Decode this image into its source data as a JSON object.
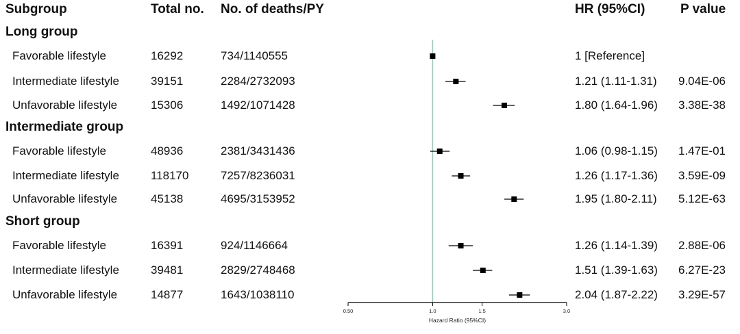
{
  "header": {
    "subgroup": "Subgroup",
    "total": "Total no.",
    "deaths": "No. of deaths/PY",
    "hr": "HR (95%CI)",
    "p": "P value"
  },
  "chart_data": {
    "type": "forest",
    "xlabel": "Hazard Ratio (95%CI)",
    "xscale": "log",
    "xlim": [
      0.5,
      3.0
    ],
    "xticks": [
      {
        "value": 0.5,
        "label": "0.50"
      },
      {
        "value": 1.0,
        "label": "1.0"
      },
      {
        "value": 1.5,
        "label": "1.5"
      },
      {
        "value": 3.0,
        "label": "3.0"
      }
    ],
    "reference_line": 1.0,
    "groups": [
      {
        "name": "Long group",
        "rows": [
          {
            "subgroup": "Favorable lifestyle",
            "total": "16292",
            "deaths_py": "734/1140555",
            "hr_text": "1 [Reference]",
            "p": "",
            "hr": 1.0,
            "lo": 1.0,
            "hi": 1.0
          },
          {
            "subgroup": "Intermediate lifestyle",
            "total": "39151",
            "deaths_py": "2284/2732093",
            "hr_text": "1.21 (1.11-1.31)",
            "p": "9.04E-06",
            "hr": 1.21,
            "lo": 1.11,
            "hi": 1.31
          },
          {
            "subgroup": "Unfavorable lifestyle",
            "total": "15306",
            "deaths_py": "1492/1071428",
            "hr_text": "1.80 (1.64-1.96)",
            "p": "3.38E-38",
            "hr": 1.8,
            "lo": 1.64,
            "hi": 1.96
          }
        ]
      },
      {
        "name": "Intermediate group",
        "rows": [
          {
            "subgroup": "Favorable lifestyle",
            "total": "48936",
            "deaths_py": "2381/3431436",
            "hr_text": "1.06 (0.98-1.15)",
            "p": "1.47E-01",
            "hr": 1.06,
            "lo": 0.98,
            "hi": 1.15
          },
          {
            "subgroup": "Intermediate lifestyle",
            "total": "118170",
            "deaths_py": "7257/8236031",
            "hr_text": "1.26 (1.17-1.36)",
            "p": "3.59E-09",
            "hr": 1.26,
            "lo": 1.17,
            "hi": 1.36
          },
          {
            "subgroup": "Unfavorable lifestyle",
            "total": "45138",
            "deaths_py": "4695/3153952",
            "hr_text": "1.95 (1.80-2.11)",
            "p": "5.12E-63",
            "hr": 1.95,
            "lo": 1.8,
            "hi": 2.11
          }
        ]
      },
      {
        "name": "Short group",
        "rows": [
          {
            "subgroup": "Favorable lifestyle",
            "total": "16391",
            "deaths_py": "924/1146664",
            "hr_text": "1.26 (1.14-1.39)",
            "p": "2.88E-06",
            "hr": 1.26,
            "lo": 1.14,
            "hi": 1.39
          },
          {
            "subgroup": "Intermediate lifestyle",
            "total": "39481",
            "deaths_py": "2829/2748468",
            "hr_text": "1.51 (1.39-1.63)",
            "p": "6.27E-23",
            "hr": 1.51,
            "lo": 1.39,
            "hi": 1.63
          },
          {
            "subgroup": "Unfavorable lifestyle",
            "total": "14877",
            "deaths_py": "1643/1038110",
            "hr_text": "2.04 (1.87-2.22)",
            "p": "3.29E-57",
            "hr": 2.04,
            "lo": 1.87,
            "hi": 2.22
          }
        ]
      }
    ],
    "colors": {
      "reference_line": "#8ecfc0",
      "marker": "#000000"
    }
  }
}
